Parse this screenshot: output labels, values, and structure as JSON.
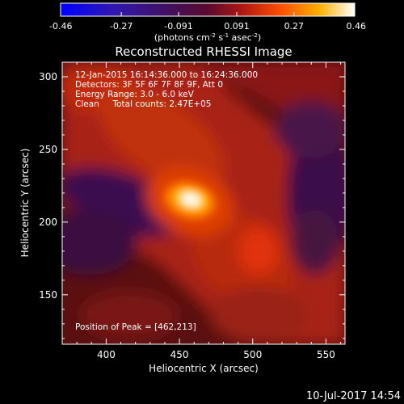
{
  "chart_data": {
    "type": "heatmap",
    "title": "Reconstructed RHESSI Image",
    "colorbar": {
      "ticks": [
        "-0.46",
        "-0.27",
        "-0.091",
        "0.091",
        "0.27",
        "0.46"
      ],
      "range": [
        -0.46,
        0.46
      ],
      "unit_main": "(photons cm",
      "unit_sup1": "-2",
      "unit_mid1": " s",
      "unit_sup2": "-1",
      "unit_mid2": " asec",
      "unit_sup3": "-2",
      "unit_end": ")"
    },
    "annotation_lines": [
      "12-Jan-2015 16:14:36.000 to 16:24:36.000",
      "Detectors: 3F 5F 6F 7F 8F 9F, Att 0",
      "Energy Range: 3.0 - 6.0 keV",
      "Clean     Total counts: 2.47E+05"
    ],
    "peak_label": "Position of Peak = [462,213]",
    "peak": [
      462,
      213
    ],
    "xlabel": "Heliocentric X (arcsec)",
    "ylabel": "Heliocentric Y (arcsec)",
    "xlim": [
      370,
      563
    ],
    "ylim": [
      116,
      310
    ],
    "xticks": [
      400,
      450,
      500,
      550
    ],
    "yticks": [
      150,
      200,
      250,
      300
    ],
    "timestamp": "10-Jul-2017 14:54",
    "colormap": [
      "#0000ff",
      "#3c0a78",
      "#5a0f5a",
      "#8b1a1a",
      "#c83010",
      "#ff7000",
      "#ffd000",
      "#ffffff"
    ]
  }
}
